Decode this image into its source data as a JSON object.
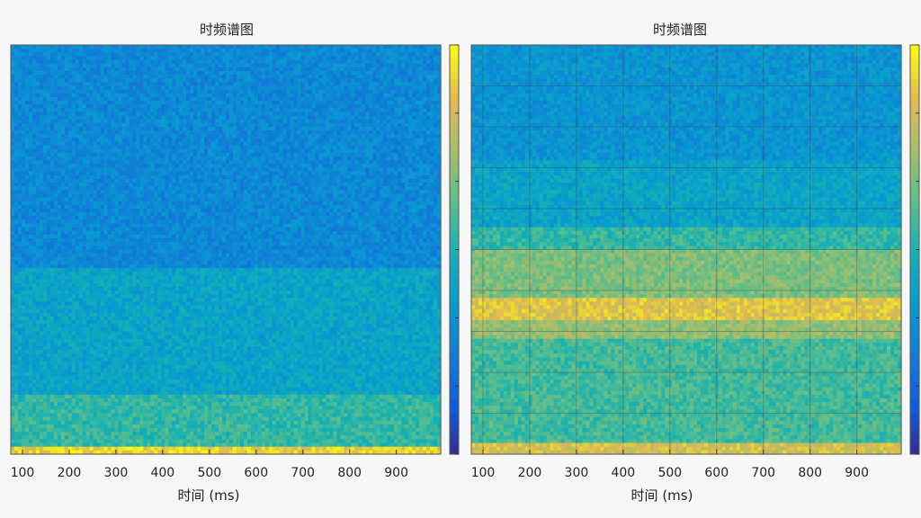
{
  "chart_data": [
    {
      "type": "heatmap",
      "title": "时频谱图",
      "xlabel": "时间 (ms)",
      "ylabel": "",
      "x_ticks": [
        100,
        200,
        300,
        400,
        500,
        600,
        700,
        800,
        900
      ],
      "xlim": [
        75,
        995
      ],
      "colormap": "parula",
      "grid": false,
      "colorbar": "right",
      "intensity_bands": [
        {
          "from": 0.0,
          "to": 0.02,
          "level": 0.92
        },
        {
          "from": 0.02,
          "to": 0.15,
          "level": 0.55
        },
        {
          "from": 0.15,
          "to": 0.45,
          "level": 0.42
        },
        {
          "from": 0.45,
          "to": 1.0,
          "level": 0.3
        }
      ]
    },
    {
      "type": "heatmap",
      "title": "时频谱图",
      "xlabel": "时间 (ms)",
      "ylabel": "",
      "x_ticks": [
        100,
        200,
        300,
        400,
        500,
        600,
        700,
        800,
        900
      ],
      "xlim": [
        75,
        995
      ],
      "colormap": "parula",
      "grid": true,
      "colorbar": "right",
      "intensity_bands": [
        {
          "from": 0.0,
          "to": 0.03,
          "level": 0.85
        },
        {
          "from": 0.03,
          "to": 0.28,
          "level": 0.58
        },
        {
          "from": 0.28,
          "to": 0.33,
          "level": 0.72
        },
        {
          "from": 0.33,
          "to": 0.38,
          "level": 0.88
        },
        {
          "from": 0.38,
          "to": 0.5,
          "level": 0.68
        },
        {
          "from": 0.5,
          "to": 0.55,
          "level": 0.55
        },
        {
          "from": 0.55,
          "to": 0.72,
          "level": 0.42
        },
        {
          "from": 0.72,
          "to": 1.0,
          "level": 0.35
        }
      ]
    }
  ]
}
